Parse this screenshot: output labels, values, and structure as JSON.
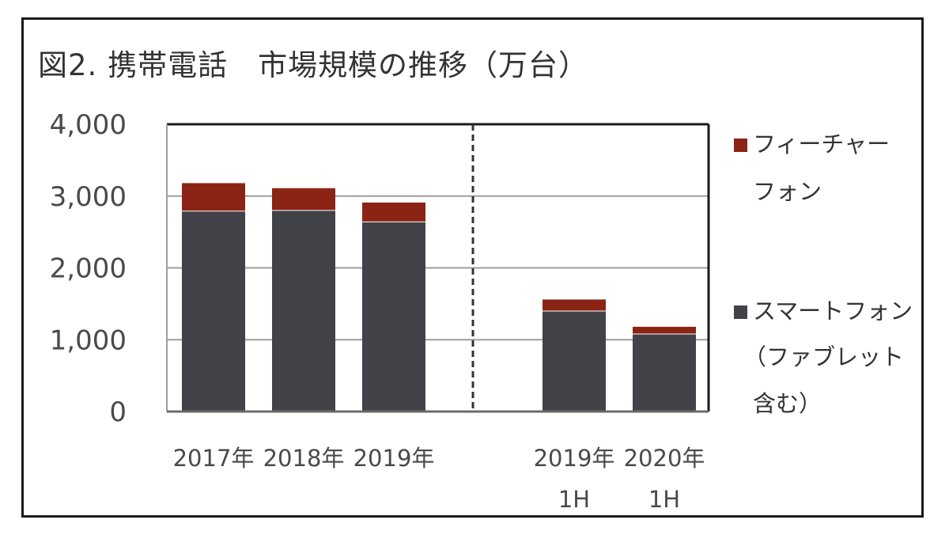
{
  "title": "図2. 携帯電話　市場規模の推移（万台）",
  "colors": {
    "feature_phone": "#8b2414",
    "smartphone": "#414348",
    "grid": "#9e9e9e",
    "divider": "#333333"
  },
  "legend": {
    "feature_phone_line1": "フィーチャー",
    "feature_phone_line2": "フォン",
    "smartphone_line1": "スマートフォン",
    "smartphone_line2": "（ファブレット",
    "smartphone_line3": "含む）"
  },
  "chart_data": {
    "type": "bar",
    "stacked": true,
    "categories": [
      [
        "2017年"
      ],
      [
        "2018年"
      ],
      [
        "2019年"
      ],
      [
        "2019年",
        "1H"
      ],
      [
        "2020年",
        "1H"
      ]
    ],
    "series": [
      {
        "name": "スマートフォン（ファブレット含む）",
        "values": [
          2790,
          2800,
          2640,
          1400,
          1080
        ]
      },
      {
        "name": "フィーチャーフォン",
        "values": [
          390,
          310,
          270,
          160,
          100
        ]
      }
    ],
    "ylim": [
      0,
      4000
    ],
    "yticks": [
      "0",
      "1,000",
      "2,000",
      "3,000",
      "4,000"
    ],
    "grid": true,
    "divider_between": [
      2,
      3
    ],
    "legend_position": "right"
  }
}
